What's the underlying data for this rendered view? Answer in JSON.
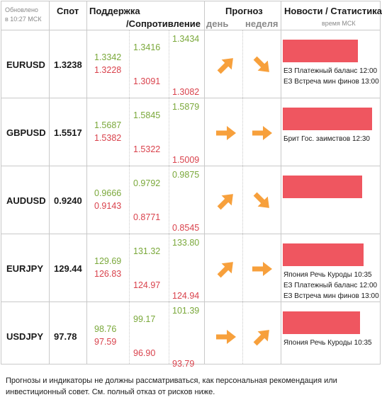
{
  "header": {
    "updated_line1": "Обновлено",
    "updated_line2": "в 10:27 МСК",
    "spot": "Спот",
    "support": "Поддержка",
    "resistance": "/Сопротивление",
    "forecast": "Прогноз",
    "day": "день",
    "week": "неделя",
    "news": "Новости / Статистика",
    "time_msk": "время МСК"
  },
  "rows": [
    {
      "pair": "EURUSD",
      "spot": "1.3238",
      "s1": "1.3342",
      "r1": "1.3228",
      "s2": "1.3416",
      "r2": "1.3091",
      "s3": "1.3434",
      "r3": "1.3082",
      "day_icon": "arrow-up-right-icon",
      "week_icon": "arrow-down-right-icon",
      "bar_pct": 0.78,
      "news": [
        "ЕЗ Платежный баланс 12:00",
        "ЕЗ Встреча мин финов 13:00"
      ]
    },
    {
      "pair": "GBPUSD",
      "spot": "1.5517",
      "s1": "1.5687",
      "r1": "1.5382",
      "s2": "1.5845",
      "r2": "1.5322",
      "s3": "1.5879",
      "r3": "1.5009",
      "day_icon": "arrow-right-icon",
      "week_icon": "arrow-right-icon",
      "bar_pct": 0.93,
      "news": [
        "Брит Гос. заимствов 12:30"
      ]
    },
    {
      "pair": "AUDUSD",
      "spot": "0.9240",
      "s1": "0.9666",
      "r1": "0.9143",
      "s2": "0.9792",
      "r2": "0.8771",
      "s3": "0.9875",
      "r3": "0.8545",
      "day_icon": "arrow-up-right-icon",
      "week_icon": "arrow-down-right-icon",
      "bar_pct": 0.82,
      "news": []
    },
    {
      "pair": "EURJPY",
      "spot": "129.44",
      "s1": "129.69",
      "r1": "126.83",
      "s2": "131.32",
      "r2": "124.97",
      "s3": "133.80",
      "r3": "124.94",
      "day_icon": "arrow-up-right-icon",
      "week_icon": "arrow-right-icon",
      "bar_pct": 0.84,
      "news": [
        "Япония Речь Куроды 10:35",
        "ЕЗ Платежный баланс 12:00",
        "ЕЗ Встреча мин финов 13:00"
      ]
    },
    {
      "pair": "USDJPY",
      "spot": "97.78",
      "s1": "98.76",
      "r1": "97.59",
      "s2": "99.17",
      "r2": "96.90",
      "s3": "101.39",
      "r3": "93.79",
      "day_icon": "arrow-right-icon",
      "week_icon": "arrow-up-right-icon",
      "bar_pct": 0.8,
      "news": [
        "Япония Речь Куроды 10:35"
      ]
    }
  ],
  "colors": {
    "accent_orange": "#f7a03c",
    "bar_red": "#ef5660",
    "green": "#7aa83a",
    "red": "#d9424c"
  },
  "footer": "Прогнозы и индикаторы не должны рассматриваться, как персональная рекомендация или инвестиционный совет. См. полный отказ от рисков ниже."
}
